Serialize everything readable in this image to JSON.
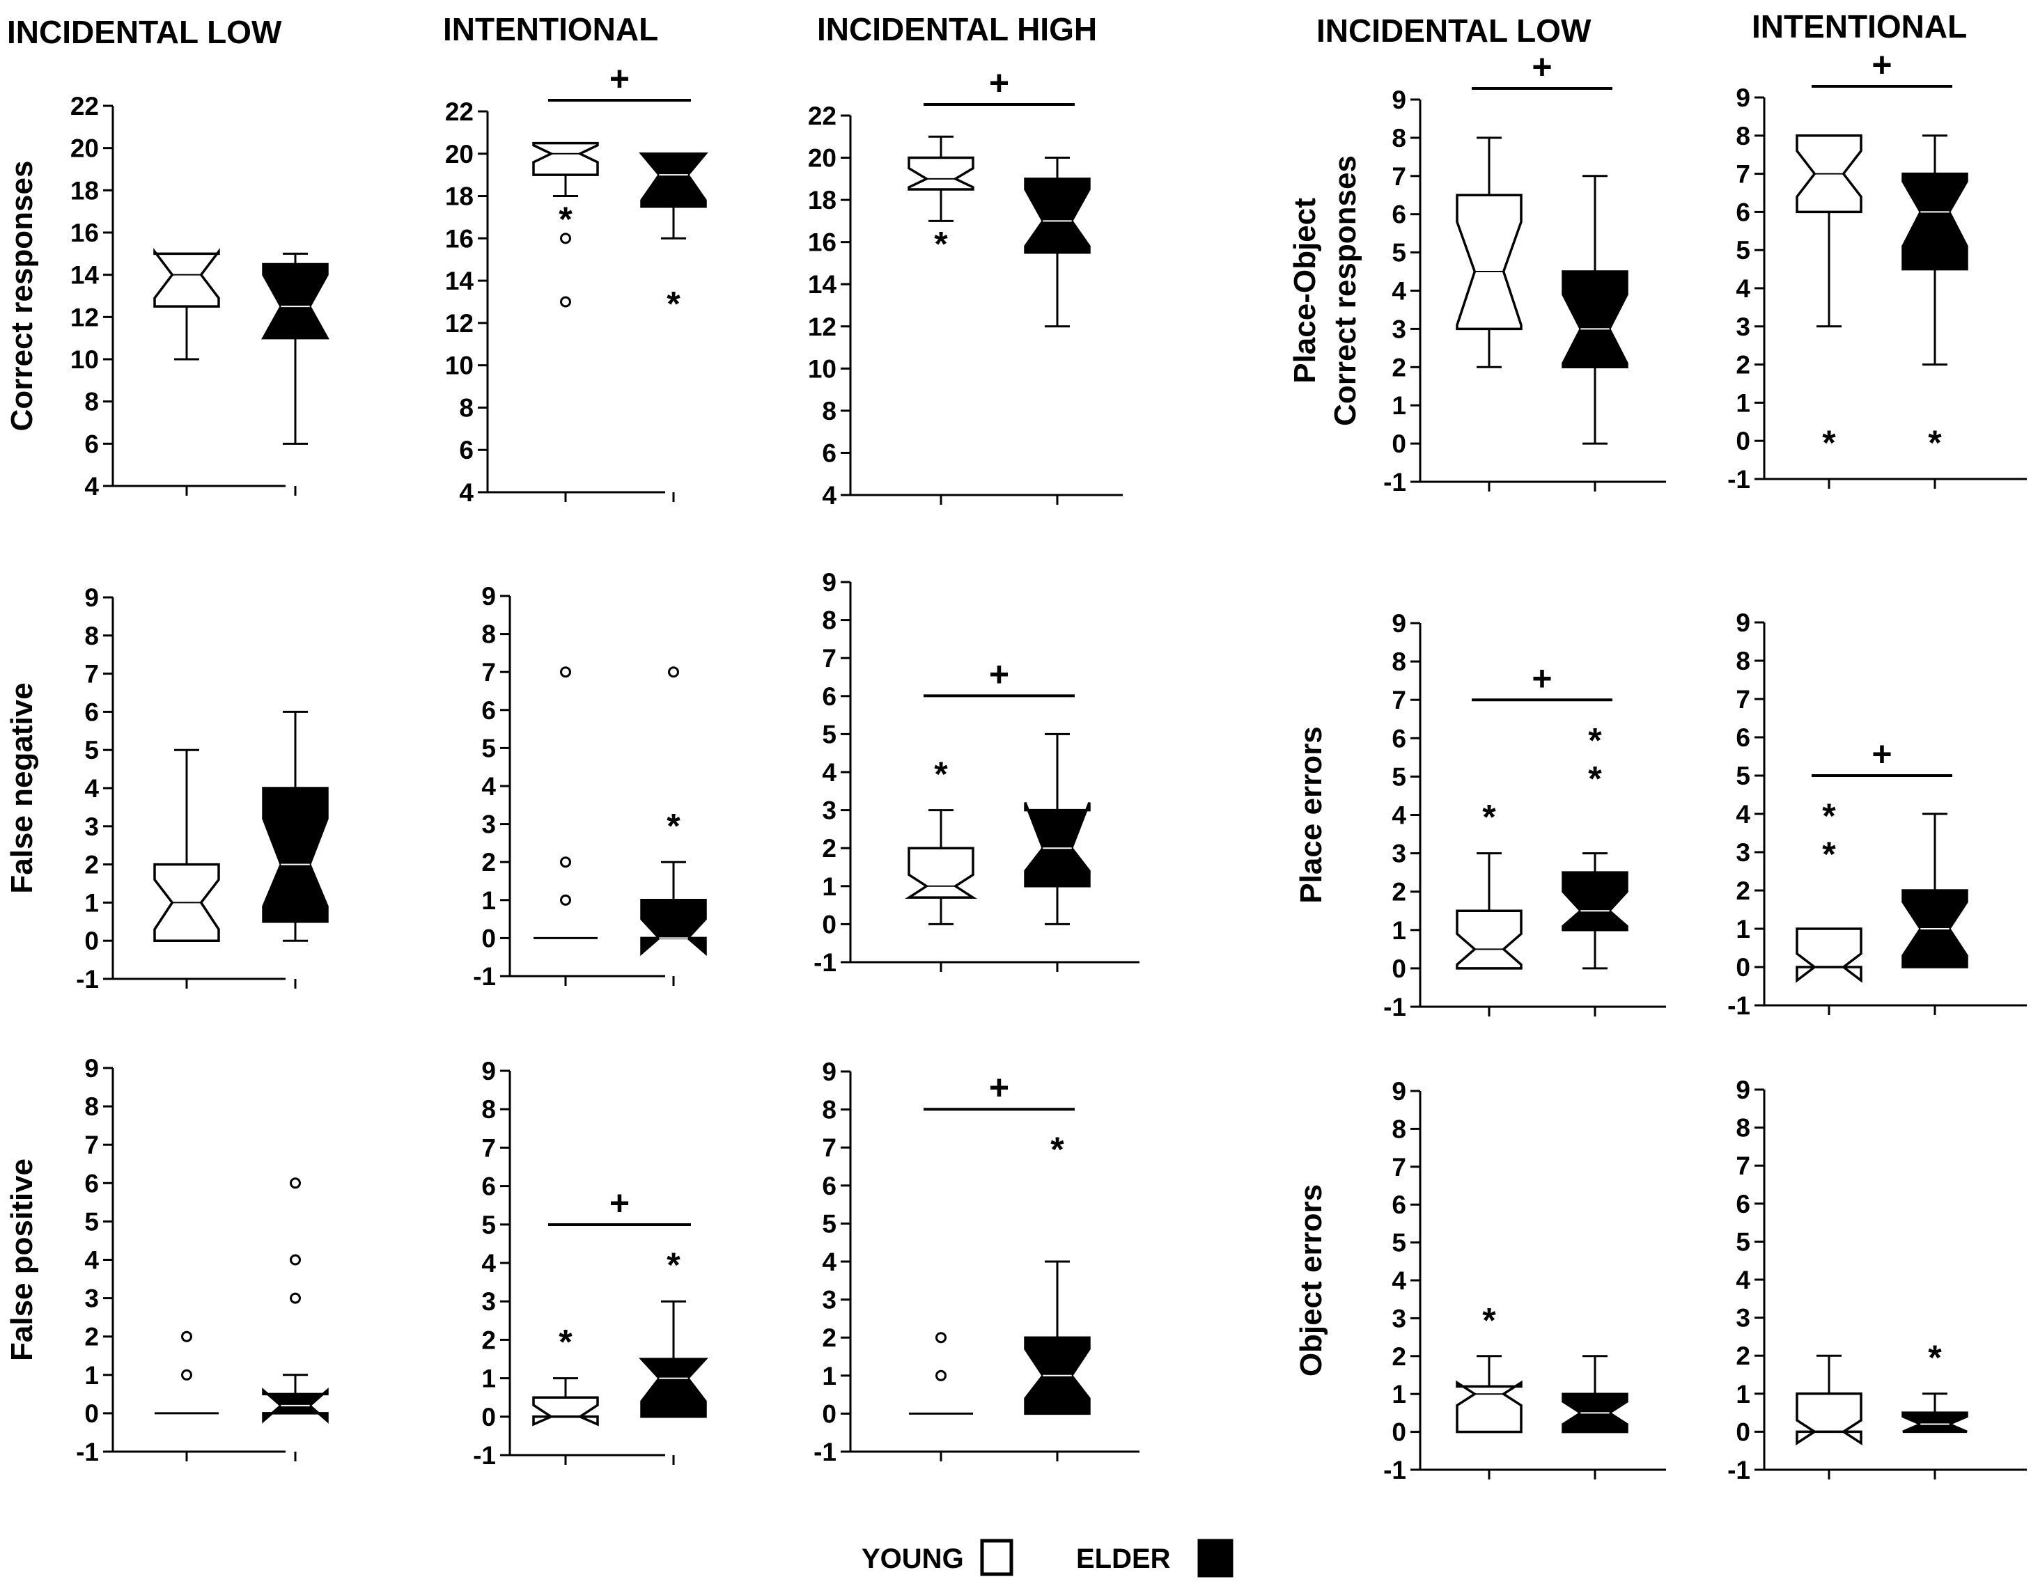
{
  "column_titles": [
    "INCIDENTAL LOW",
    "INTENTIONAL",
    "INCIDENTAL HIGH",
    "INCIDENTAL LOW",
    "INTENTIONAL"
  ],
  "legend": {
    "young": "YOUNG",
    "elder": "ELDER"
  },
  "colors": {
    "young_fill": "#ffffff",
    "elder_fill": "#000000",
    "stroke": "#000000"
  },
  "significance_marker": "+",
  "groups": [
    "YOUNG",
    "ELDER"
  ],
  "chart_data": [
    {
      "type": "boxplot",
      "col": 0,
      "row": 0,
      "title": "INCIDENTAL LOW",
      "ylabel": [
        "Correct responses"
      ],
      "ylim": [
        4,
        22
      ],
      "yticks": [
        4,
        6,
        8,
        10,
        12,
        14,
        16,
        18,
        20,
        22
      ],
      "sig": false,
      "series": [
        {
          "name": "YOUNG",
          "q1": 12.5,
          "median": 14,
          "q3": 15,
          "whislo": 10,
          "whishi": 15,
          "notch_lo": 12.9,
          "notch_hi": 15.1,
          "outliers": [],
          "extremes": []
        },
        {
          "name": "ELDER",
          "q1": 11,
          "median": 12.5,
          "q3": 14.5,
          "whislo": 6,
          "whishi": 15,
          "notch_lo": 11,
          "notch_hi": 14,
          "outliers": [],
          "extremes": []
        }
      ]
    },
    {
      "type": "boxplot",
      "col": 1,
      "row": 0,
      "title": "INTENTIONAL",
      "ylabel": [],
      "ylim": [
        4,
        22
      ],
      "yticks": [
        4,
        6,
        8,
        10,
        12,
        14,
        16,
        18,
        20,
        22
      ],
      "sig": true,
      "series": [
        {
          "name": "YOUNG",
          "q1": 19,
          "median": 20,
          "q3": 20.5,
          "whislo": 18,
          "whishi": 20.5,
          "notch_lo": 19.6,
          "notch_hi": 20.4,
          "outliers": [
            16,
            13
          ],
          "extremes": [
            17
          ]
        },
        {
          "name": "ELDER",
          "q1": 17.5,
          "median": 19,
          "q3": 20,
          "whislo": 16,
          "whishi": 20,
          "notch_lo": 17.8,
          "notch_hi": 20,
          "outliers": [],
          "extremes": [
            13
          ]
        }
      ]
    },
    {
      "type": "boxplot",
      "col": 2,
      "row": 0,
      "title": "INCIDENTAL HIGH",
      "ylabel": [],
      "ylim": [
        4,
        22
      ],
      "yticks": [
        4,
        6,
        8,
        10,
        12,
        14,
        16,
        18,
        20,
        22
      ],
      "sig": true,
      "series": [
        {
          "name": "YOUNG",
          "q1": 18.5,
          "median": 19,
          "q3": 20,
          "whislo": 17,
          "whishi": 21,
          "notch_lo": 18.6,
          "notch_hi": 19.5,
          "outliers": [],
          "extremes": [
            16
          ]
        },
        {
          "name": "ELDER",
          "q1": 15.5,
          "median": 17,
          "q3": 19,
          "whislo": 12,
          "whishi": 20,
          "notch_lo": 15.8,
          "notch_hi": 18.5,
          "outliers": [],
          "extremes": []
        }
      ]
    },
    {
      "type": "boxplot",
      "col": 3,
      "row": 0,
      "title": "INCIDENTAL LOW",
      "ylabel": [
        "Place-Object",
        "Correct responses"
      ],
      "ylim": [
        -1,
        9
      ],
      "yticks": [
        -1,
        0,
        1,
        2,
        3,
        4,
        5,
        6,
        7,
        8,
        9
      ],
      "sig": true,
      "series": [
        {
          "name": "YOUNG",
          "q1": 3,
          "median": 4.5,
          "q3": 6.5,
          "whislo": 2,
          "whishi": 8,
          "notch_lo": 3.1,
          "notch_hi": 5.8,
          "outliers": [],
          "extremes": []
        },
        {
          "name": "ELDER",
          "q1": 2,
          "median": 3,
          "q3": 4.5,
          "whislo": 0,
          "whishi": 7,
          "notch_lo": 2.1,
          "notch_hi": 3.9,
          "outliers": [],
          "extremes": []
        }
      ]
    },
    {
      "type": "boxplot",
      "col": 4,
      "row": 0,
      "title": "INTENTIONAL",
      "ylabel": [],
      "ylim": [
        -1,
        9
      ],
      "yticks": [
        -1,
        0,
        1,
        2,
        3,
        4,
        5,
        6,
        7,
        8,
        9
      ],
      "sig": true,
      "series": [
        {
          "name": "YOUNG",
          "q1": 6,
          "median": 7,
          "q3": 8,
          "whislo": 3,
          "whishi": 8,
          "notch_lo": 6.4,
          "notch_hi": 7.6,
          "outliers": [],
          "extremes": [
            0
          ]
        },
        {
          "name": "ELDER",
          "q1": 4.5,
          "median": 6,
          "q3": 7,
          "whislo": 2,
          "whishi": 8,
          "notch_lo": 5.1,
          "notch_hi": 6.8,
          "outliers": [],
          "extremes": [
            0
          ]
        }
      ]
    },
    {
      "type": "boxplot",
      "col": 0,
      "row": 1,
      "title": "",
      "ylabel": [
        "False negative"
      ],
      "ylim": [
        -1,
        9
      ],
      "yticks": [
        -1,
        0,
        1,
        2,
        3,
        4,
        5,
        6,
        7,
        8,
        9
      ],
      "sig": false,
      "series": [
        {
          "name": "YOUNG",
          "q1": 0,
          "median": 1,
          "q3": 2,
          "whislo": 0,
          "whishi": 5,
          "notch_lo": 0.3,
          "notch_hi": 1.6,
          "outliers": [],
          "extremes": []
        },
        {
          "name": "ELDER",
          "q1": 0.5,
          "median": 2,
          "q3": 4,
          "whislo": 0,
          "whishi": 6,
          "notch_lo": 0.9,
          "notch_hi": 3.2,
          "outliers": [],
          "extremes": []
        }
      ]
    },
    {
      "type": "boxplot",
      "col": 1,
      "row": 1,
      "title": "",
      "ylabel": [],
      "ylim": [
        -1,
        9
      ],
      "yticks": [
        -1,
        0,
        1,
        2,
        3,
        4,
        5,
        6,
        7,
        8,
        9
      ],
      "sig": false,
      "series": [
        {
          "name": "YOUNG",
          "q1": 0,
          "median": 0,
          "q3": 0,
          "whislo": 0,
          "whishi": 0,
          "notch_lo": 0,
          "notch_hi": 0,
          "outliers": [
            7,
            2,
            1
          ],
          "extremes": []
        },
        {
          "name": "ELDER",
          "q1": 0,
          "median": 0,
          "q3": 1,
          "whislo": 0,
          "whishi": 2,
          "notch_lo": -0.4,
          "notch_hi": 0.5,
          "outliers": [
            7
          ],
          "extremes": [
            3
          ]
        }
      ]
    },
    {
      "type": "boxplot",
      "col": 2,
      "row": 1,
      "title": "",
      "ylabel": [],
      "ylim": [
        -1,
        9
      ],
      "yticks": [
        -1,
        0,
        1,
        2,
        3,
        4,
        5,
        6,
        7,
        8,
        9
      ],
      "sig": true,
      "series": [
        {
          "name": "YOUNG",
          "q1": 0.7,
          "median": 1,
          "q3": 2,
          "whislo": 0,
          "whishi": 3,
          "notch_lo": 0.7,
          "notch_hi": 1.3,
          "outliers": [],
          "extremes": [
            4
          ]
        },
        {
          "name": "ELDER",
          "q1": 1,
          "median": 2,
          "q3": 3,
          "whislo": 0,
          "whishi": 5,
          "notch_lo": 1.4,
          "notch_hi": 3.2,
          "outliers": [],
          "extremes": []
        }
      ]
    },
    {
      "type": "boxplot",
      "col": 3,
      "row": 1,
      "title": "",
      "ylabel": [
        "Place errors"
      ],
      "ylim": [
        -1,
        9
      ],
      "yticks": [
        -1,
        0,
        1,
        2,
        3,
        4,
        5,
        6,
        7,
        8,
        9
      ],
      "sig": true,
      "series": [
        {
          "name": "YOUNG",
          "q1": 0,
          "median": 0.5,
          "q3": 1.5,
          "whislo": 0,
          "whishi": 3,
          "notch_lo": 0.1,
          "notch_hi": 0.9,
          "outliers": [],
          "extremes": [
            4
          ]
        },
        {
          "name": "ELDER",
          "q1": 1,
          "median": 1.5,
          "q3": 2.5,
          "whislo": 0,
          "whishi": 3,
          "notch_lo": 1.1,
          "notch_hi": 2.0,
          "outliers": [],
          "extremes": [
            6,
            5
          ]
        }
      ]
    },
    {
      "type": "boxplot",
      "col": 4,
      "row": 1,
      "title": "",
      "ylabel": [],
      "ylim": [
        -1,
        9
      ],
      "yticks": [
        -1,
        0,
        1,
        2,
        3,
        4,
        5,
        6,
        7,
        8,
        9
      ],
      "sig": true,
      "series": [
        {
          "name": "YOUNG",
          "q1": 0,
          "median": 0,
          "q3": 1,
          "whislo": 0,
          "whishi": 1,
          "notch_lo": -0.35,
          "notch_hi": 0.35,
          "outliers": [],
          "extremes": [
            4,
            3
          ]
        },
        {
          "name": "ELDER",
          "q1": 0,
          "median": 1,
          "q3": 2,
          "whislo": 0,
          "whishi": 4,
          "notch_lo": 0.3,
          "notch_hi": 1.7,
          "outliers": [],
          "extremes": []
        }
      ]
    },
    {
      "type": "boxplot",
      "col": 0,
      "row": 2,
      "title": "",
      "ylabel": [
        "False positive"
      ],
      "ylim": [
        -1,
        9
      ],
      "yticks": [
        -1,
        0,
        1,
        2,
        3,
        4,
        5,
        6,
        7,
        8,
        9
      ],
      "sig": false,
      "series": [
        {
          "name": "YOUNG",
          "q1": 0,
          "median": 0,
          "q3": 0,
          "whislo": 0,
          "whishi": 0,
          "notch_lo": 0,
          "notch_hi": 0,
          "outliers": [
            2,
            1
          ],
          "extremes": []
        },
        {
          "name": "ELDER",
          "q1": 0,
          "median": 0.2,
          "q3": 0.5,
          "whislo": 0,
          "whishi": 1,
          "notch_lo": -0.2,
          "notch_hi": 0.6,
          "outliers": [
            6,
            4,
            3
          ],
          "extremes": []
        }
      ]
    },
    {
      "type": "boxplot",
      "col": 1,
      "row": 2,
      "title": "",
      "ylabel": [],
      "ylim": [
        -1,
        9
      ],
      "yticks": [
        -1,
        0,
        1,
        2,
        3,
        4,
        5,
        6,
        7,
        8,
        9
      ],
      "sig": true,
      "series": [
        {
          "name": "YOUNG",
          "q1": 0,
          "median": 0,
          "q3": 0.5,
          "whislo": 0,
          "whishi": 1,
          "notch_lo": -0.2,
          "notch_hi": 0.3,
          "outliers": [],
          "extremes": [
            2
          ]
        },
        {
          "name": "ELDER",
          "q1": 0,
          "median": 1,
          "q3": 1.5,
          "whislo": 0,
          "whishi": 3,
          "notch_lo": 0.4,
          "notch_hi": 1.5,
          "outliers": [],
          "extremes": [
            4
          ]
        }
      ]
    },
    {
      "type": "boxplot",
      "col": 2,
      "row": 2,
      "title": "",
      "ylabel": [],
      "ylim": [
        -1,
        9
      ],
      "yticks": [
        -1,
        0,
        1,
        2,
        3,
        4,
        5,
        6,
        7,
        8,
        9
      ],
      "sig": true,
      "series": [
        {
          "name": "YOUNG",
          "q1": 0,
          "median": 0,
          "q3": 0,
          "whislo": 0,
          "whishi": 0,
          "notch_lo": 0,
          "notch_hi": 0,
          "outliers": [
            2,
            1
          ],
          "extremes": []
        },
        {
          "name": "ELDER",
          "q1": 0,
          "median": 1,
          "q3": 2,
          "whislo": 0,
          "whishi": 4,
          "notch_lo": 0.4,
          "notch_hi": 1.7,
          "outliers": [],
          "extremes": [
            7
          ]
        }
      ]
    },
    {
      "type": "boxplot",
      "col": 3,
      "row": 2,
      "title": "",
      "ylabel": [
        "Object errors"
      ],
      "ylim": [
        -1,
        9
      ],
      "yticks": [
        -1,
        0,
        1,
        2,
        3,
        4,
        5,
        6,
        7,
        8,
        9
      ],
      "sig": false,
      "series": [
        {
          "name": "YOUNG",
          "q1": 0,
          "median": 1,
          "q3": 1.2,
          "whislo": 0,
          "whishi": 2,
          "notch_lo": 0.7,
          "notch_hi": 1.3,
          "outliers": [],
          "extremes": [
            3
          ]
        },
        {
          "name": "ELDER",
          "q1": 0,
          "median": 0.5,
          "q3": 1,
          "whislo": 0,
          "whishi": 2,
          "notch_lo": 0.2,
          "notch_hi": 0.8,
          "outliers": [],
          "extremes": []
        }
      ]
    },
    {
      "type": "boxplot",
      "col": 4,
      "row": 2,
      "title": "",
      "ylabel": [],
      "ylim": [
        -1,
        9
      ],
      "yticks": [
        -1,
        0,
        1,
        2,
        3,
        4,
        5,
        6,
        7,
        8,
        9
      ],
      "sig": false,
      "series": [
        {
          "name": "YOUNG",
          "q1": 0,
          "median": 0,
          "q3": 1,
          "whislo": 0,
          "whishi": 2,
          "notch_lo": -0.3,
          "notch_hi": 0.3,
          "outliers": [],
          "extremes": []
        },
        {
          "name": "ELDER",
          "q1": 0,
          "median": 0.2,
          "q3": 0.5,
          "whislo": 0,
          "whishi": 1,
          "notch_lo": 0,
          "notch_hi": 0.4,
          "outliers": [],
          "extremes": [
            2
          ]
        }
      ]
    }
  ]
}
